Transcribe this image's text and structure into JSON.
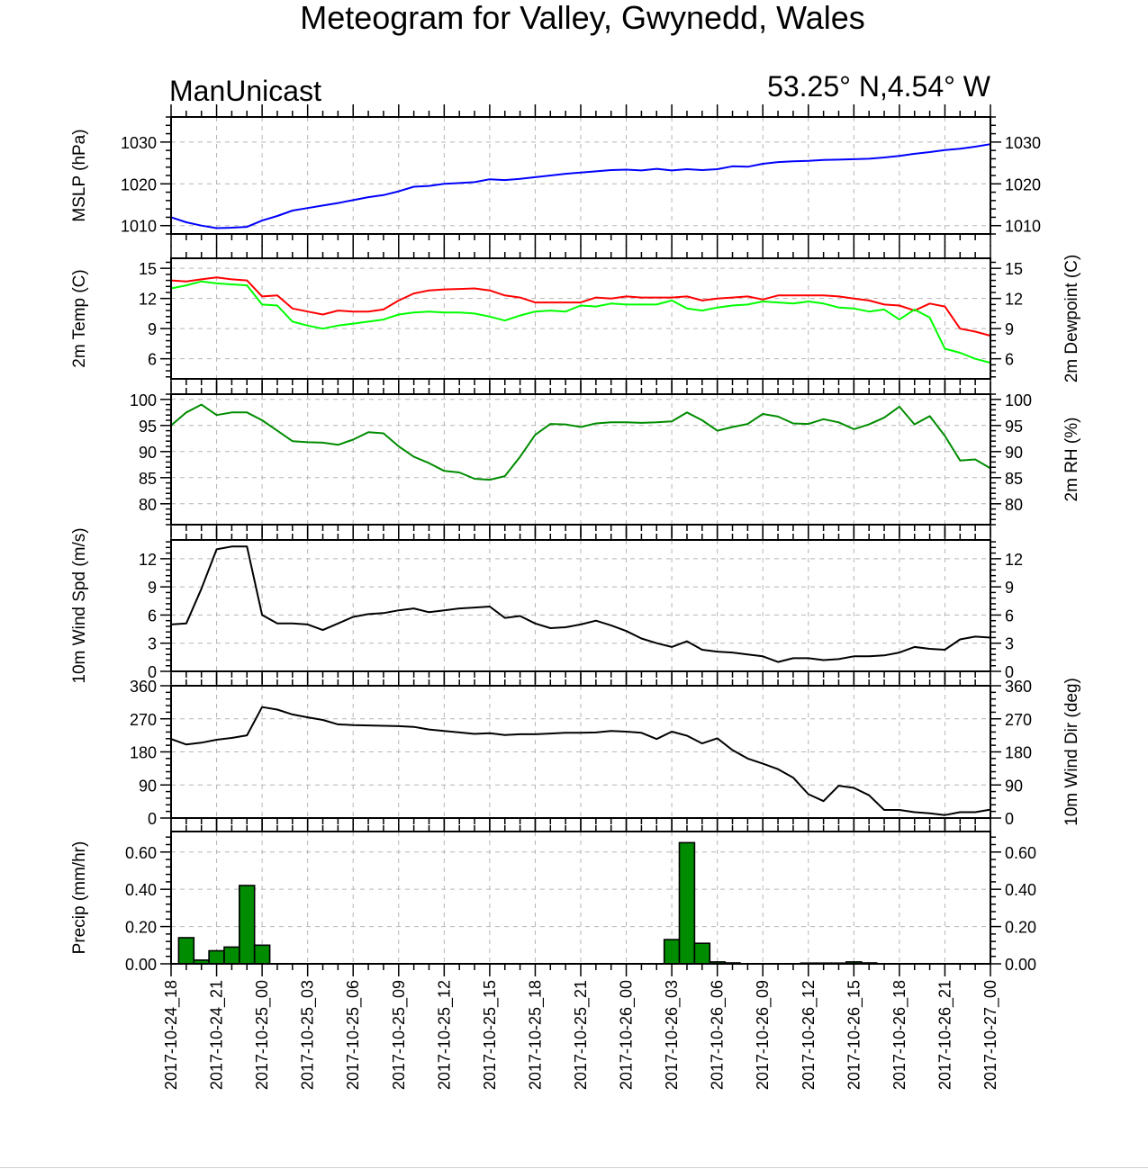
{
  "title": "Meteogram for Valley, Gwynedd, Wales",
  "model_label": "ManUnicast",
  "location_label": "53.25° N,4.54° W",
  "x_axis": {
    "tick_labels": [
      "2017-10-24_18",
      "2017-10-24_21",
      "2017-10-25_00",
      "2017-10-25_03",
      "2017-10-25_06",
      "2017-10-25_09",
      "2017-10-25_12",
      "2017-10-25_15",
      "2017-10-25_18",
      "2017-10-25_21",
      "2017-10-26_00",
      "2017-10-26_03",
      "2017-10-26_06",
      "2017-10-26_09",
      "2017-10-26_12",
      "2017-10-26_15",
      "2017-10-26_18",
      "2017-10-26_21",
      "2017-10-27_00"
    ],
    "range_hours": [
      0,
      54
    ]
  },
  "chart_data": [
    {
      "type": "line",
      "id": "mslp",
      "ylabel_left": "MSLP (hPa)",
      "ylabel_right": "",
      "yticks": [
        1010,
        1020,
        1030
      ],
      "ylim": [
        1008,
        1036
      ],
      "grid": true,
      "x_hours": [
        0,
        1,
        2,
        3,
        4,
        5,
        6,
        7,
        8,
        9,
        10,
        11,
        12,
        13,
        14,
        15,
        16,
        17,
        18,
        19,
        20,
        21,
        22,
        23,
        24,
        25,
        26,
        27,
        28,
        29,
        30,
        31,
        32,
        33,
        34,
        35,
        36,
        37,
        38,
        39,
        40,
        41,
        42,
        43,
        44,
        45,
        46,
        47,
        48,
        49,
        50,
        51,
        52,
        53,
        54
      ],
      "series": [
        {
          "color": "#0000ff",
          "values": [
            1012.0,
            1010.8,
            1010.0,
            1009.4,
            1009.5,
            1009.7,
            1011.2,
            1012.3,
            1013.6,
            1014.2,
            1014.8,
            1015.4,
            1016.1,
            1016.8,
            1017.3,
            1018.2,
            1019.3,
            1019.5,
            1020.0,
            1020.2,
            1020.4,
            1021.1,
            1020.9,
            1021.2,
            1021.6,
            1022.0,
            1022.4,
            1022.7,
            1023.0,
            1023.3,
            1023.4,
            1023.2,
            1023.6,
            1023.2,
            1023.5,
            1023.3,
            1023.5,
            1024.2,
            1024.1,
            1024.8,
            1025.2,
            1025.4,
            1025.5,
            1025.7,
            1025.8,
            1025.9,
            1026.0,
            1026.3,
            1026.7,
            1027.2,
            1027.6,
            1028.1,
            1028.4,
            1028.9,
            1029.5
          ]
        }
      ]
    },
    {
      "type": "line",
      "id": "temp-dewpoint",
      "ylabel_left": "2m Temp (C)",
      "ylabel_right": "2m Dewpoint (C)",
      "yticks": [
        6,
        9,
        12,
        15
      ],
      "ylim": [
        4,
        16
      ],
      "grid": true,
      "x_hours": [
        0,
        1,
        2,
        3,
        4,
        5,
        6,
        7,
        8,
        9,
        10,
        11,
        12,
        13,
        14,
        15,
        16,
        17,
        18,
        19,
        20,
        21,
        22,
        23,
        24,
        25,
        26,
        27,
        28,
        29,
        30,
        31,
        32,
        33,
        34,
        35,
        36,
        37,
        38,
        39,
        40,
        41,
        42,
        43,
        44,
        45,
        46,
        47,
        48,
        49,
        50,
        51,
        52,
        53,
        54
      ],
      "series": [
        {
          "color": "#ff0000",
          "values": [
            13.8,
            13.7,
            13.9,
            14.1,
            13.9,
            13.8,
            12.2,
            12.3,
            11.0,
            10.7,
            10.4,
            10.8,
            10.7,
            10.7,
            10.9,
            11.8,
            12.5,
            12.8,
            12.9,
            12.95,
            13.0,
            12.8,
            12.3,
            12.1,
            11.6,
            11.6,
            11.6,
            11.6,
            12.1,
            12.0,
            12.2,
            12.1,
            12.1,
            12.1,
            12.2,
            11.8,
            12.0,
            12.1,
            12.2,
            11.9,
            12.3,
            12.3,
            12.3,
            12.3,
            12.2,
            12.0,
            11.8,
            11.4,
            11.3,
            10.8,
            11.5,
            11.2,
            9.0,
            8.7,
            8.3
          ]
        },
        {
          "color": "#00ff00",
          "values": [
            13.0,
            13.3,
            13.7,
            13.5,
            13.4,
            13.3,
            11.4,
            11.3,
            9.7,
            9.3,
            9.0,
            9.3,
            9.5,
            9.7,
            9.9,
            10.4,
            10.6,
            10.7,
            10.6,
            10.6,
            10.5,
            10.2,
            9.8,
            10.3,
            10.7,
            10.8,
            10.7,
            11.3,
            11.2,
            11.5,
            11.4,
            11.4,
            11.4,
            11.8,
            11.0,
            10.8,
            11.1,
            11.3,
            11.4,
            11.7,
            11.6,
            11.5,
            11.7,
            11.5,
            11.1,
            11.0,
            10.7,
            10.9,
            9.9,
            10.9,
            10.1,
            7.0,
            6.6,
            6.0,
            5.6
          ]
        }
      ]
    },
    {
      "type": "line",
      "id": "relative-humidity",
      "ylabel_left": "",
      "ylabel_right": "2m RH (%)",
      "yticks": [
        80,
        85,
        90,
        95,
        100
      ],
      "ylim": [
        76,
        101
      ],
      "grid": true,
      "x_hours": [
        0,
        1,
        2,
        3,
        4,
        5,
        6,
        7,
        8,
        9,
        10,
        11,
        12,
        13,
        14,
        15,
        16,
        17,
        18,
        19,
        20,
        21,
        22,
        23,
        24,
        25,
        26,
        27,
        28,
        29,
        30,
        31,
        32,
        33,
        34,
        35,
        36,
        37,
        38,
        39,
        40,
        41,
        42,
        43,
        44,
        45,
        46,
        47,
        48,
        49,
        50,
        51,
        52,
        53,
        54
      ],
      "series": [
        {
          "color": "#008c00",
          "values": [
            95.0,
            97.5,
            99.0,
            97.0,
            97.5,
            97.5,
            96.0,
            94.0,
            92.0,
            91.8,
            91.7,
            91.3,
            92.3,
            93.7,
            93.5,
            91.0,
            89.0,
            87.8,
            86.3,
            86.0,
            84.8,
            84.6,
            85.3,
            89.0,
            93.2,
            95.3,
            95.2,
            94.7,
            95.4,
            95.6,
            95.6,
            95.5,
            95.6,
            95.8,
            97.5,
            96.0,
            94.0,
            94.7,
            95.3,
            97.2,
            96.7,
            95.4,
            95.3,
            96.2,
            95.6,
            94.3,
            95.2,
            96.5,
            98.6,
            95.2,
            96.8,
            93.0,
            88.3,
            88.5,
            86.8
          ]
        }
      ]
    },
    {
      "type": "line",
      "id": "wind-speed",
      "ylabel_left": "10m Wind Spd (m/s)",
      "ylabel_right": "",
      "yticks": [
        0,
        3,
        6,
        9,
        12
      ],
      "ylim": [
        0,
        14
      ],
      "grid": true,
      "x_hours": [
        0,
        1,
        2,
        3,
        4,
        5,
        6,
        7,
        8,
        9,
        10,
        11,
        12,
        13,
        14,
        15,
        16,
        17,
        18,
        19,
        20,
        21,
        22,
        23,
        24,
        25,
        26,
        27,
        28,
        29,
        30,
        31,
        32,
        33,
        34,
        35,
        36,
        37,
        38,
        39,
        40,
        41,
        42,
        43,
        44,
        45,
        46,
        47,
        48,
        49,
        50,
        51,
        52,
        53,
        54
      ],
      "series": [
        {
          "color": "#000000",
          "values": [
            5.0,
            5.1,
            8.8,
            13.0,
            13.3,
            13.3,
            6.0,
            5.1,
            5.1,
            5.0,
            4.4,
            5.1,
            5.8,
            6.1,
            6.2,
            6.5,
            6.7,
            6.3,
            6.5,
            6.7,
            6.8,
            6.9,
            5.7,
            5.9,
            5.1,
            4.6,
            4.7,
            5.0,
            5.4,
            4.9,
            4.3,
            3.5,
            3.0,
            2.6,
            3.2,
            2.3,
            2.1,
            2.0,
            1.8,
            1.6,
            1.0,
            1.4,
            1.4,
            1.2,
            1.3,
            1.6,
            1.6,
            1.7,
            2.0,
            2.6,
            2.4,
            2.3,
            3.4,
            3.7,
            3.6
          ]
        }
      ]
    },
    {
      "type": "line",
      "id": "wind-direction",
      "ylabel_left": "",
      "ylabel_right": "10m Wind Dir (deg)",
      "yticks": [
        0,
        90,
        180,
        270,
        360
      ],
      "ylim": [
        0,
        360
      ],
      "grid": true,
      "x_hours": [
        0,
        1,
        2,
        3,
        4,
        5,
        6,
        7,
        8,
        9,
        10,
        11,
        12,
        13,
        14,
        15,
        16,
        17,
        18,
        19,
        20,
        21,
        22,
        23,
        24,
        25,
        26,
        27,
        28,
        29,
        30,
        31,
        32,
        33,
        34,
        35,
        36,
        37,
        38,
        39,
        40,
        41,
        42,
        43,
        44,
        45,
        46,
        47,
        48,
        49,
        50,
        51,
        52,
        53,
        54
      ],
      "series": [
        {
          "color": "#000000",
          "values": [
            215,
            200,
            205,
            213,
            218,
            225,
            302,
            295,
            282,
            274,
            267,
            255,
            253,
            252,
            251,
            250,
            248,
            241,
            237,
            233,
            229,
            231,
            226,
            228,
            228,
            230,
            232,
            232,
            233,
            237,
            235,
            232,
            215,
            235,
            224,
            203,
            217,
            185,
            162,
            148,
            133,
            110,
            65,
            46,
            88,
            82,
            62,
            22,
            22,
            16,
            13,
            8,
            16,
            16,
            23
          ]
        }
      ]
    },
    {
      "type": "bar",
      "id": "precipitation",
      "ylabel_left": "Precip (mm/hr)",
      "ylabel_right": "",
      "yticks": [
        0.0,
        0.2,
        0.4,
        0.6
      ],
      "ytick_labels": [
        "0.00",
        "0.20",
        "0.40",
        "0.60"
      ],
      "ylim": [
        0,
        0.71
      ],
      "grid": true,
      "bar_color": "#008c00",
      "x_hours": [
        1,
        2,
        3,
        4,
        5,
        6,
        33,
        34,
        35,
        36,
        37,
        42,
        43,
        44,
        45,
        46
      ],
      "values": [
        0.14,
        0.02,
        0.07,
        0.09,
        0.42,
        0.1,
        0.13,
        0.65,
        0.11,
        0.01,
        0.005,
        0.004,
        0.004,
        0.004,
        0.01,
        0.005
      ]
    }
  ]
}
